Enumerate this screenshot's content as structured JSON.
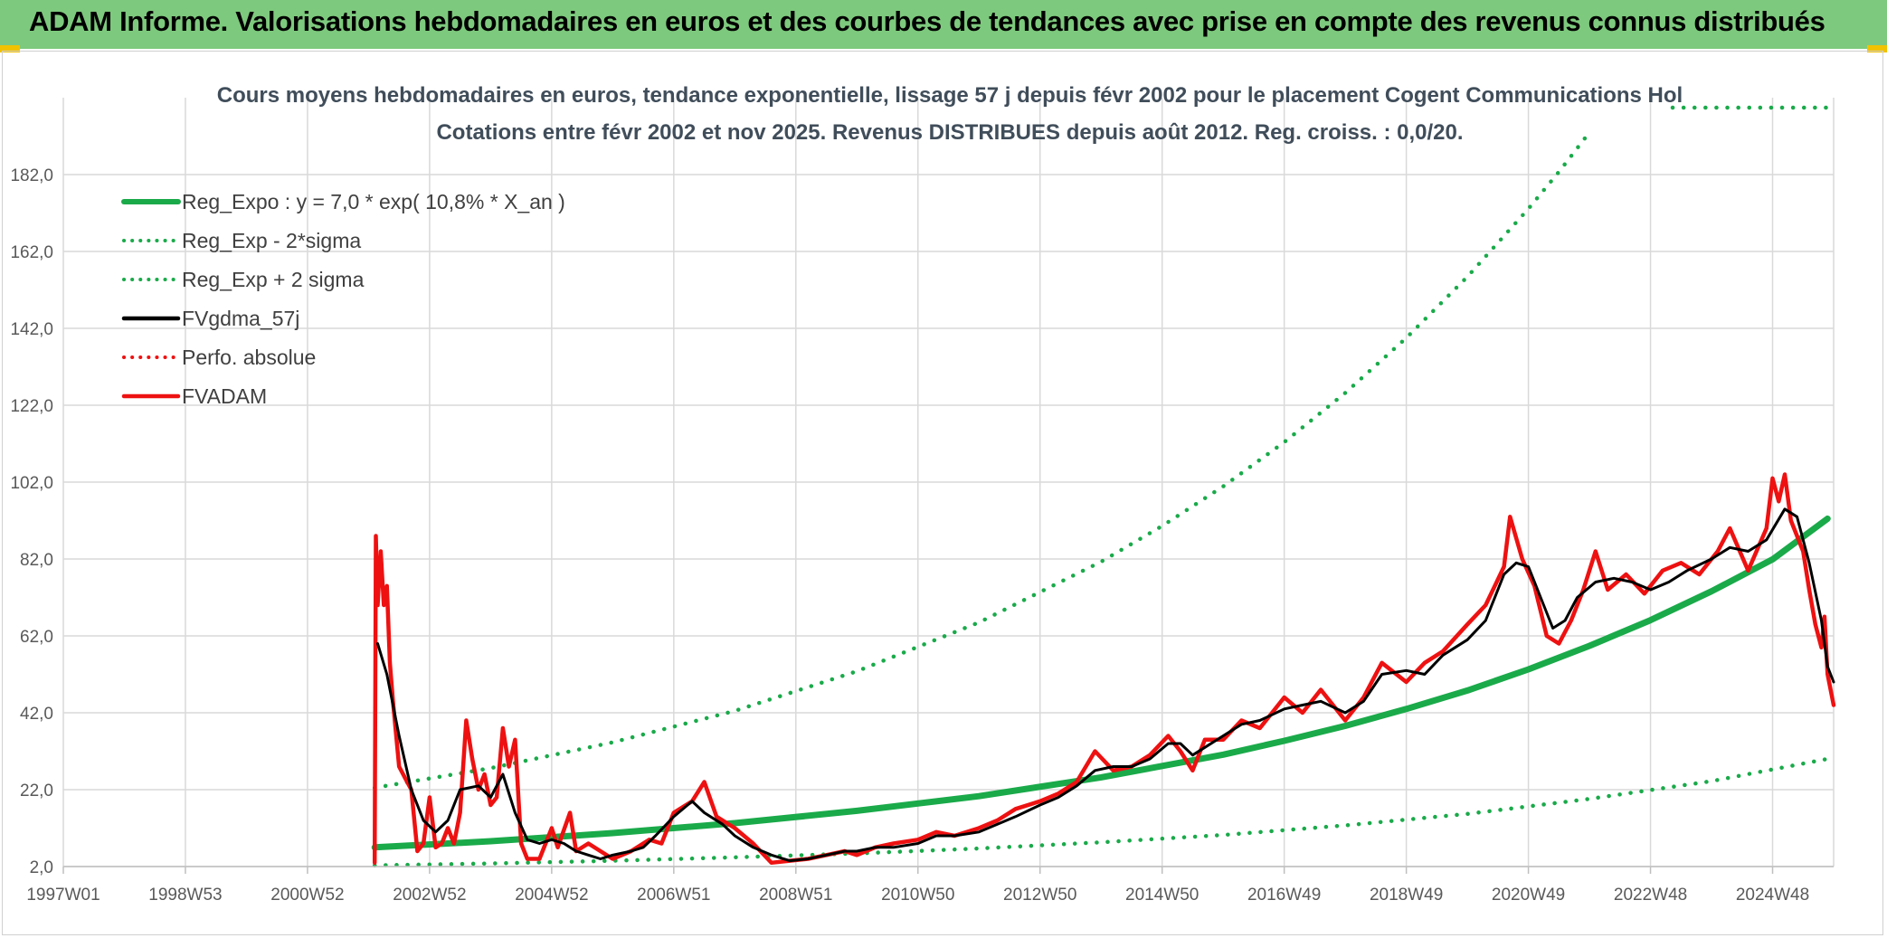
{
  "page_title": "ADAM Informe. Valorisations hebdomadaires en euros et des courbes de tendances avec prise en compte des revenus connus distribués",
  "colors": {
    "banner": "#7dc97d",
    "green": "#1aaa4a",
    "dotgreen": "#1aaa4a",
    "black": "#000000",
    "red": "#ee1111",
    "grid": "#d9d9d9",
    "axis_text": "#595959",
    "title_text": "#404d5a"
  },
  "chart_data": {
    "type": "line",
    "title": "Cours moyens hebdomadaires en euros, tendance exponentielle, lissage 57 j depuis févr 2002 pour le placement Cogent Communications Hol",
    "subtitle": "Cotations entre févr 2002 et nov 2025. Revenus DISTRIBUES depuis août 2012. Reg. croiss. : 0,0/20.",
    "xlabel": "",
    "ylabel": "",
    "x_range": [
      1997.0,
      2025.9
    ],
    "ylim": [
      2.0,
      202.0
    ],
    "y_ticks": [
      2.0,
      22.0,
      42.0,
      62.0,
      82.0,
      102.0,
      122.0,
      142.0,
      162.0,
      182.0
    ],
    "y_tick_labels": [
      "2,0",
      "22,0",
      "42,0",
      "62,0",
      "82,0",
      "102,0",
      "122,0",
      "142,0",
      "162,0",
      "182,0"
    ],
    "x_ticks": [
      {
        "label": "1997W01",
        "x": 1997.0
      },
      {
        "label": "1998W53",
        "x": 1999.0
      },
      {
        "label": "2000W52",
        "x": 2001.0
      },
      {
        "label": "2002W52",
        "x": 2003.0
      },
      {
        "label": "2004W52",
        "x": 2005.0
      },
      {
        "label": "2006W51",
        "x": 2007.0
      },
      {
        "label": "2008W51",
        "x": 2009.0
      },
      {
        "label": "2010W50",
        "x": 2011.0
      },
      {
        "label": "2012W50",
        "x": 2013.0
      },
      {
        "label": "2014W50",
        "x": 2015.0
      },
      {
        "label": "2016W49",
        "x": 2017.0
      },
      {
        "label": "2018W49",
        "x": 2019.0
      },
      {
        "label": "2020W49",
        "x": 2021.0
      },
      {
        "label": "2022W48",
        "x": 2023.0
      },
      {
        "label": "2024W48",
        "x": 2025.0
      }
    ],
    "grid": true,
    "legend_position": "top-left",
    "series": [
      {
        "name": "Reg_Expo : y = 7,0 * exp( 10,8% *  X_an )",
        "style": "solid",
        "color": "#1aaa4a",
        "points": [
          [
            2002.1,
            7.0
          ],
          [
            2004,
            8.6
          ],
          [
            2006,
            10.7
          ],
          [
            2008,
            13.3
          ],
          [
            2010,
            16.5
          ],
          [
            2012,
            20.3
          ],
          [
            2014,
            25.2
          ],
          [
            2016,
            31.1
          ],
          [
            2017,
            34.7
          ],
          [
            2018,
            38.6
          ],
          [
            2019,
            43.0
          ],
          [
            2020,
            47.8
          ],
          [
            2021,
            53.3
          ],
          [
            2022,
            59.4
          ],
          [
            2023,
            66.1
          ],
          [
            2024,
            73.6
          ],
          [
            2025,
            81.9
          ],
          [
            2025.9,
            92.5
          ]
        ]
      },
      {
        "name": "Reg_Exp - 2*sigma",
        "style": "dotted",
        "color": "#1aaa4a",
        "points": [
          [
            2002.1,
            2.3
          ],
          [
            2004,
            2.8
          ],
          [
            2006,
            3.5
          ],
          [
            2008,
            4.4
          ],
          [
            2010,
            5.4
          ],
          [
            2012,
            6.7
          ],
          [
            2014,
            8.3
          ],
          [
            2016,
            10.2
          ],
          [
            2018,
            12.7
          ],
          [
            2020,
            15.7
          ],
          [
            2022,
            19.6
          ],
          [
            2024,
            24.2
          ],
          [
            2025.9,
            30.0
          ]
        ]
      },
      {
        "name": "Reg_Exp + 2 sigma",
        "style": "dotted",
        "color": "#1aaa4a",
        "points": [
          [
            2002.1,
            22.5
          ],
          [
            2004,
            27.6
          ],
          [
            2006,
            34.3
          ],
          [
            2008,
            42.5
          ],
          [
            2010,
            52.8
          ],
          [
            2012,
            65.5
          ],
          [
            2014,
            81.3
          ],
          [
            2015,
            90.6
          ],
          [
            2016,
            100.9
          ],
          [
            2017,
            112.4
          ],
          [
            2018,
            125.2
          ],
          [
            2019,
            139.5
          ],
          [
            2020,
            155.4
          ],
          [
            2021,
            173.1
          ],
          [
            2021.5,
            182.7
          ],
          [
            2022,
            193.0
          ]
        ]
      },
      {
        "name": "FVgdma_57j",
        "style": "solid",
        "color": "#000000",
        "points": [
          [
            2002.15,
            60
          ],
          [
            2002.3,
            52
          ],
          [
            2002.5,
            36
          ],
          [
            2002.7,
            22
          ],
          [
            2002.9,
            14
          ],
          [
            2003.1,
            11
          ],
          [
            2003.3,
            14
          ],
          [
            2003.5,
            22
          ],
          [
            2003.8,
            23
          ],
          [
            2004.0,
            20
          ],
          [
            2004.2,
            26
          ],
          [
            2004.4,
            16
          ],
          [
            2004.6,
            9
          ],
          [
            2004.8,
            8
          ],
          [
            2005.0,
            9
          ],
          [
            2005.2,
            8
          ],
          [
            2005.4,
            6
          ],
          [
            2005.6,
            5
          ],
          [
            2005.8,
            4
          ],
          [
            2006.0,
            5
          ],
          [
            2006.3,
            6
          ],
          [
            2006.5,
            7
          ],
          [
            2006.7,
            10
          ],
          [
            2007.0,
            15
          ],
          [
            2007.3,
            19
          ],
          [
            2007.5,
            16
          ],
          [
            2007.8,
            13
          ],
          [
            2008.0,
            10
          ],
          [
            2008.3,
            7
          ],
          [
            2008.6,
            5
          ],
          [
            2008.9,
            3.5
          ],
          [
            2009.2,
            4
          ],
          [
            2009.5,
            5
          ],
          [
            2009.8,
            6
          ],
          [
            2010.0,
            6
          ],
          [
            2010.3,
            7
          ],
          [
            2010.6,
            7
          ],
          [
            2011.0,
            8
          ],
          [
            2011.3,
            10
          ],
          [
            2011.6,
            10
          ],
          [
            2012.0,
            11
          ],
          [
            2012.3,
            13
          ],
          [
            2012.6,
            15
          ],
          [
            2013.0,
            18
          ],
          [
            2013.3,
            20
          ],
          [
            2013.6,
            23
          ],
          [
            2013.9,
            27
          ],
          [
            2014.2,
            28
          ],
          [
            2014.5,
            28
          ],
          [
            2014.8,
            30
          ],
          [
            2015.1,
            34
          ],
          [
            2015.3,
            34
          ],
          [
            2015.5,
            31
          ],
          [
            2015.7,
            33
          ],
          [
            2016.0,
            36
          ],
          [
            2016.3,
            39
          ],
          [
            2016.6,
            40
          ],
          [
            2017.0,
            43
          ],
          [
            2017.3,
            44
          ],
          [
            2017.6,
            45
          ],
          [
            2018.0,
            42
          ],
          [
            2018.3,
            45
          ],
          [
            2018.6,
            52
          ],
          [
            2019.0,
            53
          ],
          [
            2019.3,
            52
          ],
          [
            2019.6,
            57
          ],
          [
            2020.0,
            61
          ],
          [
            2020.3,
            66
          ],
          [
            2020.6,
            78
          ],
          [
            2020.8,
            81
          ],
          [
            2021.0,
            80
          ],
          [
            2021.2,
            72
          ],
          [
            2021.4,
            64
          ],
          [
            2021.6,
            66
          ],
          [
            2021.8,
            72
          ],
          [
            2022.1,
            76
          ],
          [
            2022.4,
            77
          ],
          [
            2022.7,
            76
          ],
          [
            2023.0,
            74
          ],
          [
            2023.3,
            76
          ],
          [
            2023.6,
            79
          ],
          [
            2024.0,
            82
          ],
          [
            2024.3,
            85
          ],
          [
            2024.6,
            84
          ],
          [
            2024.9,
            87
          ],
          [
            2025.2,
            95
          ],
          [
            2025.4,
            93
          ],
          [
            2025.6,
            81
          ],
          [
            2025.8,
            66
          ],
          [
            2025.9,
            54
          ],
          [
            2026.0,
            50
          ]
        ]
      },
      {
        "name": "Perfo. absolue",
        "style": "dotted",
        "color": "#ee1111",
        "points": []
      },
      {
        "name": "FVADAM",
        "style": "solid",
        "color": "#ee1111",
        "points": [
          [
            2002.1,
            3
          ],
          [
            2002.12,
            88
          ],
          [
            2002.15,
            70
          ],
          [
            2002.2,
            84
          ],
          [
            2002.25,
            70
          ],
          [
            2002.3,
            75
          ],
          [
            2002.35,
            55
          ],
          [
            2002.4,
            45
          ],
          [
            2002.5,
            28
          ],
          [
            2002.6,
            25
          ],
          [
            2002.7,
            22
          ],
          [
            2002.8,
            6
          ],
          [
            2002.9,
            8
          ],
          [
            2003.0,
            20
          ],
          [
            2003.1,
            7
          ],
          [
            2003.2,
            8
          ],
          [
            2003.3,
            12
          ],
          [
            2003.4,
            8
          ],
          [
            2003.5,
            16
          ],
          [
            2003.6,
            40
          ],
          [
            2003.7,
            30
          ],
          [
            2003.8,
            22
          ],
          [
            2003.9,
            26
          ],
          [
            2004.0,
            18
          ],
          [
            2004.1,
            20
          ],
          [
            2004.2,
            38
          ],
          [
            2004.3,
            28
          ],
          [
            2004.4,
            35
          ],
          [
            2004.5,
            8
          ],
          [
            2004.6,
            4
          ],
          [
            2004.8,
            4
          ],
          [
            2005.0,
            12
          ],
          [
            2005.1,
            7
          ],
          [
            2005.3,
            16
          ],
          [
            2005.4,
            6
          ],
          [
            2005.6,
            8
          ],
          [
            2005.8,
            6
          ],
          [
            2006.0,
            4
          ],
          [
            2006.3,
            6
          ],
          [
            2006.6,
            9
          ],
          [
            2006.8,
            8
          ],
          [
            2007.0,
            16
          ],
          [
            2007.3,
            19
          ],
          [
            2007.5,
            24
          ],
          [
            2007.7,
            15
          ],
          [
            2008.0,
            12
          ],
          [
            2008.3,
            8
          ],
          [
            2008.6,
            3
          ],
          [
            2008.9,
            3.5
          ],
          [
            2009.2,
            4
          ],
          [
            2009.5,
            5
          ],
          [
            2009.8,
            6
          ],
          [
            2010.0,
            5
          ],
          [
            2010.3,
            7
          ],
          [
            2010.6,
            8
          ],
          [
            2011.0,
            9
          ],
          [
            2011.3,
            11
          ],
          [
            2011.6,
            10
          ],
          [
            2012.0,
            12
          ],
          [
            2012.3,
            14
          ],
          [
            2012.6,
            17
          ],
          [
            2013.0,
            19
          ],
          [
            2013.3,
            21
          ],
          [
            2013.6,
            24
          ],
          [
            2013.9,
            32
          ],
          [
            2014.2,
            27
          ],
          [
            2014.5,
            28
          ],
          [
            2014.8,
            31
          ],
          [
            2015.1,
            36
          ],
          [
            2015.3,
            32
          ],
          [
            2015.5,
            27
          ],
          [
            2015.7,
            35
          ],
          [
            2016.0,
            35
          ],
          [
            2016.3,
            40
          ],
          [
            2016.6,
            38
          ],
          [
            2017.0,
            46
          ],
          [
            2017.3,
            42
          ],
          [
            2017.6,
            48
          ],
          [
            2018.0,
            40
          ],
          [
            2018.3,
            46
          ],
          [
            2018.6,
            55
          ],
          [
            2019.0,
            50
          ],
          [
            2019.3,
            55
          ],
          [
            2019.6,
            58
          ],
          [
            2020.0,
            65
          ],
          [
            2020.3,
            70
          ],
          [
            2020.6,
            80
          ],
          [
            2020.7,
            93
          ],
          [
            2020.9,
            82
          ],
          [
            2021.1,
            75
          ],
          [
            2021.3,
            62
          ],
          [
            2021.5,
            60
          ],
          [
            2021.7,
            66
          ],
          [
            2021.9,
            74
          ],
          [
            2022.1,
            84
          ],
          [
            2022.3,
            74
          ],
          [
            2022.6,
            78
          ],
          [
            2022.9,
            73
          ],
          [
            2023.2,
            79
          ],
          [
            2023.5,
            81
          ],
          [
            2023.8,
            78
          ],
          [
            2024.1,
            84
          ],
          [
            2024.3,
            90
          ],
          [
            2024.6,
            79
          ],
          [
            2024.9,
            90
          ],
          [
            2025.0,
            103
          ],
          [
            2025.1,
            97
          ],
          [
            2025.2,
            104
          ],
          [
            2025.3,
            92
          ],
          [
            2025.5,
            84
          ],
          [
            2025.6,
            74
          ],
          [
            2025.7,
            65
          ],
          [
            2025.8,
            59
          ],
          [
            2025.85,
            67
          ],
          [
            2025.9,
            52
          ],
          [
            2026.0,
            44
          ]
        ]
      }
    ]
  }
}
